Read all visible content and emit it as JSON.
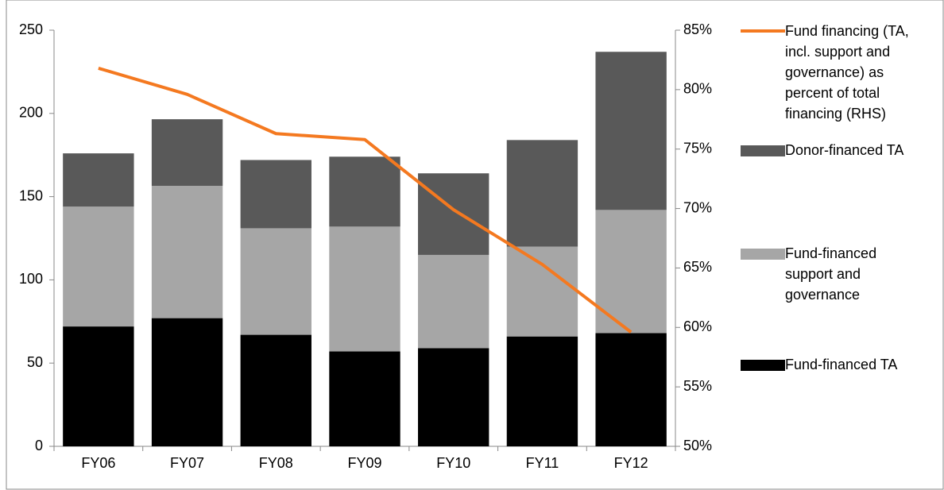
{
  "chart_data": {
    "type": "bar",
    "categories": [
      "FY06",
      "FY07",
      "FY08",
      "FY09",
      "FY10",
      "FY11",
      "FY12"
    ],
    "stacked": true,
    "series": [
      {
        "name": "Fund-financed TA",
        "color": "#000000",
        "values": [
          72,
          77,
          67,
          57,
          59,
          66,
          68
        ]
      },
      {
        "name": "Fund-financed support and governance",
        "color": "#a6a6a6",
        "values": [
          72,
          79.5,
          64,
          75,
          56,
          54,
          74
        ]
      },
      {
        "name": "Donor-financed TA",
        "color": "#595959",
        "values": [
          32,
          40,
          41,
          42,
          49,
          64,
          95
        ]
      },
      {
        "name": "Fund financing (TA, incl. support and governance) as percent of total financing (RHS)",
        "color": "#f47920",
        "type": "line",
        "axis": "y2",
        "values": [
          81.8,
          79.6,
          76.3,
          75.8,
          69.9,
          65.3,
          59.6
        ]
      }
    ],
    "ylim": [
      0,
      250
    ],
    "yticks": [
      0,
      50,
      100,
      150,
      200,
      250
    ],
    "y2lim": [
      50,
      85
    ],
    "y2ticks": [
      {
        "value": 50,
        "label": "50%"
      },
      {
        "value": 55,
        "label": "55%"
      },
      {
        "value": 60,
        "label": "60%"
      },
      {
        "value": 65,
        "label": "65%"
      },
      {
        "value": 70,
        "label": "70%"
      },
      {
        "value": 75,
        "label": "75%"
      },
      {
        "value": 80,
        "label": "80%"
      },
      {
        "value": 85,
        "label": "85%"
      }
    ],
    "grid": false
  }
}
